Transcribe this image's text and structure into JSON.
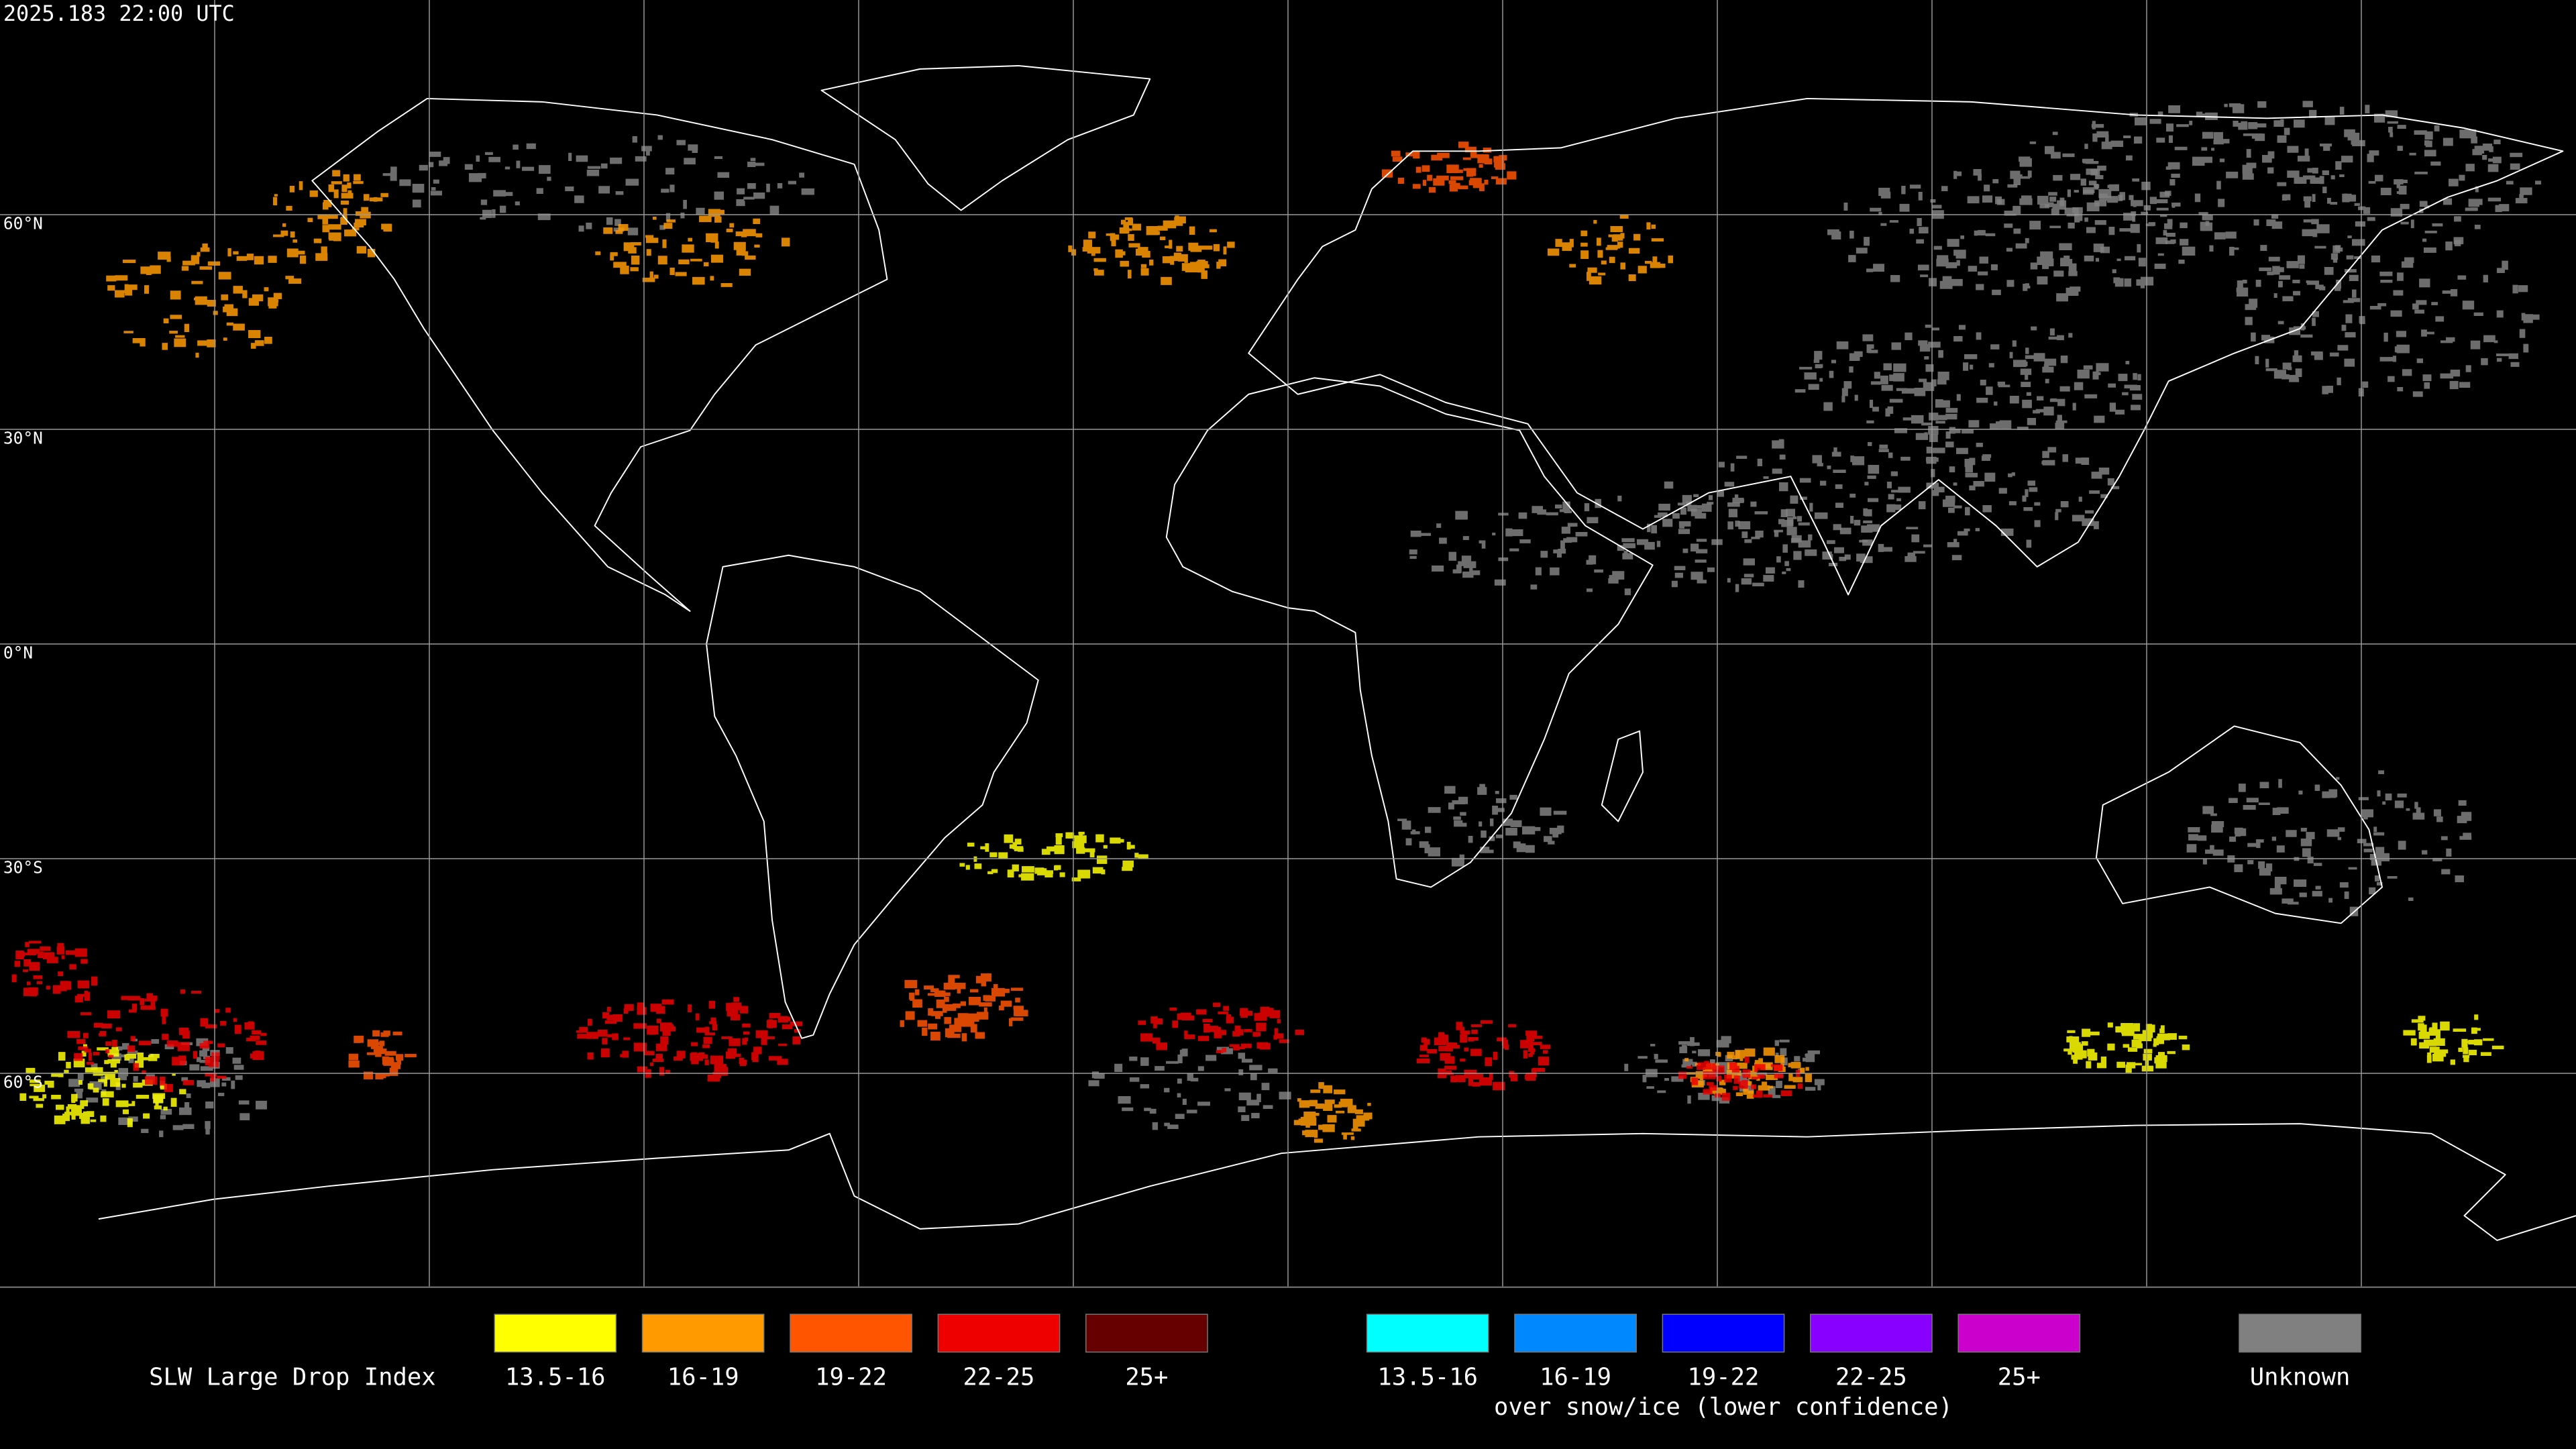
{
  "header": {
    "timestamp": "2025.183 22:00 UTC"
  },
  "map": {
    "lat_labels": [
      "60°N",
      "30°N",
      "0°N",
      "30°S",
      "60°S"
    ]
  },
  "legend": {
    "title": "SLW Large Drop Index",
    "liquid": [
      {
        "label": "13.5-16",
        "color": "#ffff00"
      },
      {
        "label": "16-19",
        "color": "#ff9a00"
      },
      {
        "label": "19-22",
        "color": "#ff5400"
      },
      {
        "label": "22-25",
        "color": "#ee0000"
      },
      {
        "label": "25+",
        "color": "#660000"
      }
    ],
    "snow_ice": [
      {
        "label": "13.5-16",
        "color": "#00ffff"
      },
      {
        "label": "16-19",
        "color": "#0088ff"
      },
      {
        "label": "19-22",
        "color": "#0000ff"
      },
      {
        "label": "22-25",
        "color": "#8800ff"
      },
      {
        "label": "25+",
        "color": "#cc00cc"
      }
    ],
    "snow_ice_note": "over snow/ice (lower confidence)",
    "unknown": {
      "label": "Unknown",
      "color": "#808080"
    }
  }
}
